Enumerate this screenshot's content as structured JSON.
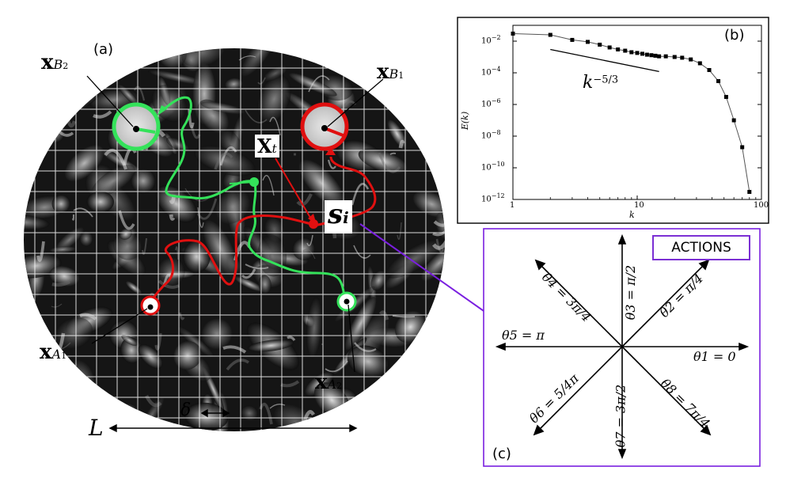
{
  "panel_a": {
    "label": "(a)",
    "x_b2": {
      "main": "x",
      "sub": "B",
      "subsub": "2"
    },
    "x_b1": {
      "main": "x",
      "sub": "B",
      "subsub": "1"
    },
    "x_t": {
      "main": "X",
      "sub": "t"
    },
    "s_i": {
      "main": "s",
      "sub": "i"
    },
    "x_a1": {
      "main": "x",
      "sub": "A",
      "subsub": "1"
    },
    "x_a2": {
      "main": "x",
      "sub": "A",
      "subsub": "2"
    },
    "delta": "δ",
    "L": "L",
    "colors": {
      "green": "#2ee85a",
      "red": "#e01010",
      "arrow": "#7a1fe0",
      "grid": "#ffffff"
    }
  },
  "panel_b": {
    "label": "(b)",
    "ylabel": "E(k)",
    "xlabel": "k",
    "annotation": "k",
    "annotation_exp": "−5/3",
    "xticks": [
      "1",
      "10",
      "100"
    ],
    "yticks": [
      "10",
      "10",
      "10",
      "10",
      "10",
      "10"
    ],
    "ytick_exps": [
      "−2",
      "−4",
      "−6",
      "−8",
      "−10",
      "−12"
    ]
  },
  "chart_data": {
    "type": "line",
    "title": "",
    "xlabel": "k",
    "ylabel": "E(k)",
    "xscale": "log",
    "yscale": "log",
    "xlim": [
      1,
      100
    ],
    "ylim": [
      1e-12,
      0.1
    ],
    "series": [
      {
        "x": [
          1,
          2,
          3,
          4,
          5,
          6,
          7,
          8,
          9,
          10,
          11,
          12,
          13,
          14,
          15,
          17,
          20,
          23,
          27,
          32,
          38,
          45,
          52,
          60,
          70,
          80
        ],
        "y": [
          0.03,
          0.025,
          0.012,
          0.009,
          0.006,
          0.004,
          0.003,
          0.0025,
          0.002,
          0.0018,
          0.0016,
          0.0014,
          0.0013,
          0.0012,
          0.0011,
          0.0011,
          0.001,
          0.0009,
          0.0007,
          0.0004,
          0.00015,
          3e-05,
          3e-06,
          1e-07,
          2e-09,
          3e-12
        ]
      }
    ],
    "reference_line": {
      "label": "k^{-5/3}",
      "x": [
        2,
        15
      ],
      "y": [
        0.003,
        0.00012
      ]
    },
    "grid": false
  },
  "panel_c": {
    "label": "(c)",
    "title": "ACTIONS",
    "theta1": "θ1 = 0",
    "theta2": "θ2 = π/4",
    "theta3": "θ3 = π/2",
    "theta4": "θ4 = 3π/4",
    "theta5": "θ5 = π",
    "theta6": "θ6 = 5/4π",
    "theta7": "θ7 = 3π/2",
    "theta8": "θ8 = 7π/4",
    "frame_color": "#7a1fe0"
  }
}
